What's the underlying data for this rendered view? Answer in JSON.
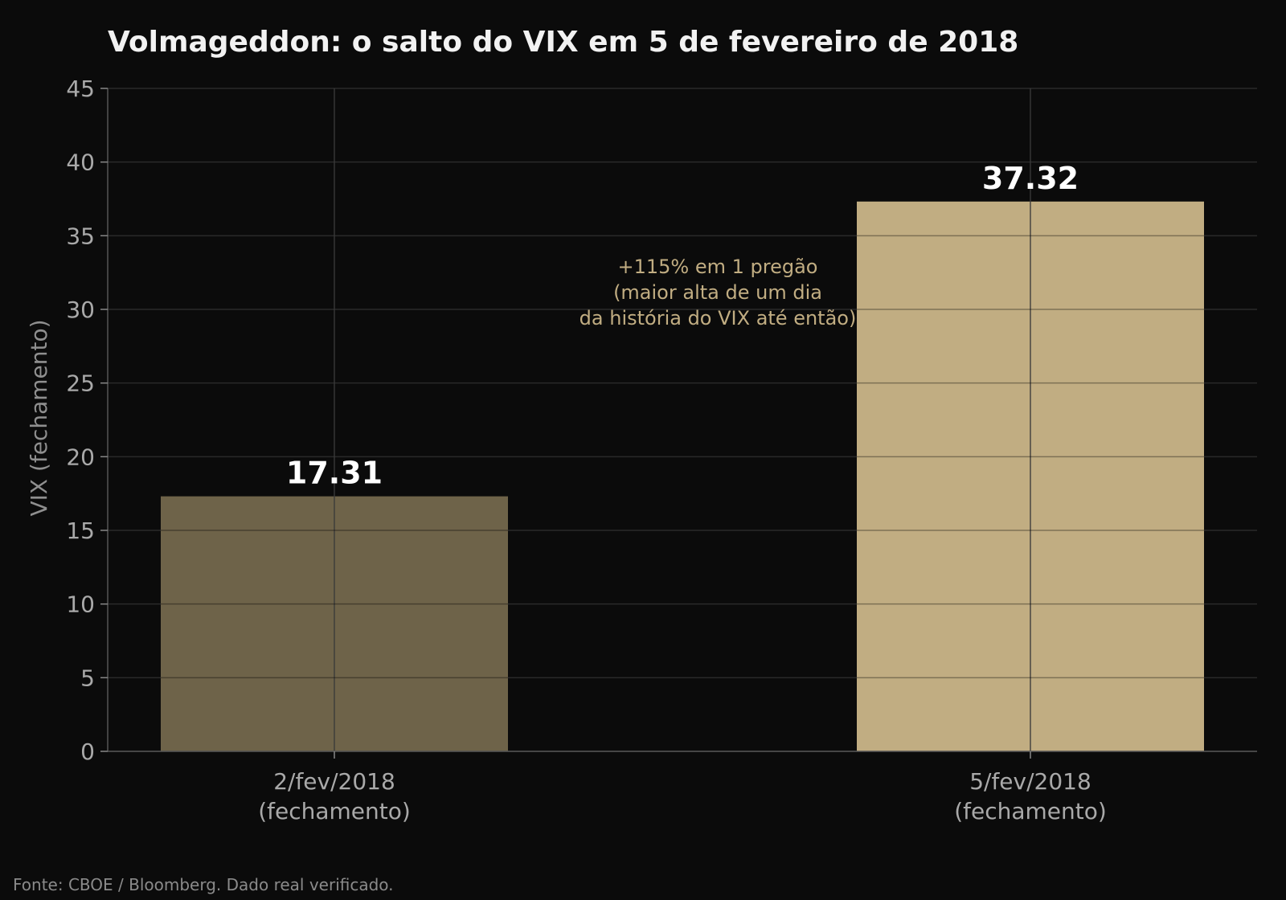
{
  "chart_data": {
    "type": "bar",
    "title": "Volmageddon: o salto do VIX em 5 de fevereiro de 2018",
    "xlabel": "",
    "ylabel": "VIX (fechamento)",
    "ylim": [
      0,
      45
    ],
    "yticks": [
      0,
      5,
      10,
      15,
      20,
      25,
      30,
      35,
      40,
      45
    ],
    "categories": [
      [
        "2/fev/2018",
        "(fechamento)"
      ],
      [
        "5/fev/2018",
        "(fechamento)"
      ]
    ],
    "values": [
      17.31,
      37.32
    ],
    "data_labels": [
      "17.31",
      "37.32"
    ],
    "bar_colors": [
      "#6e6349",
      "#c1ad82"
    ],
    "annotation": [
      "+115% em 1 pregão",
      "(maior alta de um dia",
      "da história do VIX até então)"
    ],
    "grid": true,
    "source": "Fonte: CBOE / Bloomberg. Dado real verificado."
  },
  "colors": {
    "background": "#0b0b0b",
    "grid": "#2a2a2a",
    "axis": "#555555",
    "annotation": "#c1ad82"
  }
}
